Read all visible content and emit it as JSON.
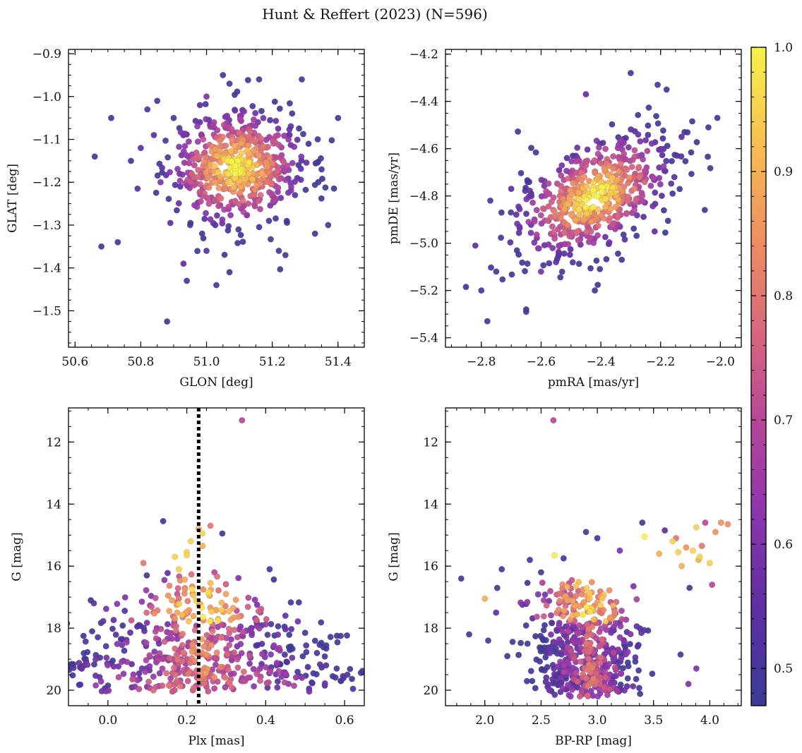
{
  "figure": {
    "title": "Hunt & Reffert (2023) (N=596)"
  },
  "colorbar": {
    "label": "",
    "range": [
      0.47,
      1.0
    ],
    "ticks": [
      0.5,
      0.6,
      0.7,
      0.8,
      0.9,
      1.0
    ],
    "tick_labels": [
      "0.5",
      "0.6",
      "0.7",
      "0.8",
      "0.9",
      "1.0"
    ],
    "colormap": "plasma",
    "colormap_stops": [
      "#3b3b95",
      "#5b2fa2",
      "#8a34ae",
      "#b64599",
      "#d9687c",
      "#ef9060",
      "#f8c050",
      "#f5f249"
    ]
  },
  "chart_data": [
    {
      "id": "sky",
      "type": "scatter",
      "title": "",
      "xlabel": "GLON [deg]",
      "ylabel": "GLAT [deg]",
      "xlim": [
        50.58,
        51.48
      ],
      "ylim": [
        -1.585,
        -0.89
      ],
      "xticks": [
        50.6,
        50.8,
        51.0,
        51.2,
        51.4
      ],
      "xtick_labels": [
        "50.6",
        "50.8",
        "51.0",
        "51.2",
        "51.4"
      ],
      "yticks": [
        -1.5,
        -1.4,
        -1.3,
        -1.2,
        -1.1,
        -1.0,
        -0.9
      ],
      "ytick_labels": [
        "−1.5",
        "−1.4",
        "−1.3",
        "−1.2",
        "−1.1",
        "−1.0",
        "−0.9"
      ],
      "n_points": 596,
      "x": [
        50.66,
        50.68,
        50.71,
        50.73,
        50.77,
        50.79,
        50.8,
        50.82,
        50.84,
        50.85,
        50.86,
        50.89,
        50.9,
        50.92,
        50.93,
        50.94,
        50.95,
        50.96,
        51.0,
        51.03,
        51.05,
        51.07,
        51.07,
        51.16,
        51.19,
        51.22,
        51.24,
        51.29,
        51.33,
        51.35,
        51.37,
        51.4,
        51.28,
        51.25,
        50.88,
        51.0,
        50.98,
        50.98
      ],
      "y": [
        -1.14,
        -1.35,
        -1.05,
        -1.34,
        -1.15,
        -1.215,
        -1.12,
        -1.03,
        -1.09,
        -1.01,
        -1.2,
        -1.295,
        -1.05,
        -1.21,
        -1.39,
        -1.43,
        -1.3,
        -1.2,
        -1.36,
        -1.44,
        -0.95,
        -0.97,
        -1.41,
        -0.96,
        -1.29,
        -1.36,
        -1.37,
        -0.96,
        -1.32,
        -1.17,
        -1.3,
        -1.05,
        -1.16,
        -1.09,
        -1.525,
        -1.0,
        -1.02,
        -1.06
      ],
      "color": [
        0.5,
        0.5,
        0.5,
        0.5,
        0.5,
        0.55,
        0.55,
        0.52,
        0.55,
        0.5,
        0.6,
        0.55,
        0.5,
        0.55,
        0.55,
        0.5,
        0.5,
        0.6,
        0.55,
        0.5,
        0.5,
        0.5,
        0.5,
        0.5,
        0.5,
        0.5,
        0.5,
        0.5,
        0.5,
        0.5,
        0.5,
        0.5,
        0.5,
        0.55,
        0.5,
        0.6,
        0.55,
        0.55
      ],
      "gen": {
        "cx": 51.09,
        "cy": -1.165,
        "sx": 0.1,
        "sy": 0.065,
        "n": 558
      }
    },
    {
      "id": "pm",
      "type": "scatter",
      "title": "",
      "xlabel": "pmRA [mas/yr]",
      "ylabel": "pmDE [mas/yr]",
      "xlim": [
        -2.92,
        -1.93
      ],
      "ylim": [
        -5.44,
        -4.18
      ],
      "xticks": [
        -2.8,
        -2.6,
        -2.4,
        -2.2,
        -2.0
      ],
      "xtick_labels": [
        "−2.8",
        "−2.6",
        "−2.4",
        "−2.2",
        "−2.0"
      ],
      "yticks": [
        -5.4,
        -5.2,
        -5.0,
        -4.8,
        -4.6,
        -4.4,
        -4.2
      ],
      "ytick_labels": [
        "−5.4",
        "−5.2",
        "−5.0",
        "−4.8",
        "−4.6",
        "−4.4",
        "−4.2"
      ],
      "n_points": 596,
      "x": [
        -2.78,
        -2.8,
        -2.75,
        -2.65,
        -2.65,
        -2.82,
        -2.77,
        -2.7,
        -2.6,
        -2.55,
        -2.42,
        -2.33,
        -2.22,
        -2.16,
        -2.04,
        -2.01,
        -2.12,
        -2.18,
        -2.3,
        -2.45,
        -2.13,
        -2.21
      ],
      "y": [
        -5.33,
        -5.2,
        -5.12,
        -5.29,
        -5.28,
        -5.01,
        -4.82,
        -4.77,
        -5.12,
        -5.08,
        -5.2,
        -5.07,
        -4.95,
        -4.79,
        -4.51,
        -4.47,
        -4.53,
        -4.35,
        -4.28,
        -4.37,
        -4.55,
        -4.33
      ],
      "color": [
        0.5,
        0.5,
        0.5,
        0.5,
        0.5,
        0.55,
        0.5,
        0.55,
        0.6,
        0.55,
        0.5,
        0.5,
        0.55,
        0.5,
        0.5,
        0.5,
        0.5,
        0.5,
        0.5,
        0.55,
        0.55,
        0.5
      ],
      "gen": {
        "cx": -2.42,
        "cy": -4.8,
        "sx": 0.13,
        "sy": 0.13,
        "corr": 0.5,
        "n": 574
      }
    },
    {
      "id": "plx",
      "type": "scatter",
      "title": "",
      "xlabel": "Plx [mas]",
      "ylabel": "G [mag]",
      "xlim": [
        -0.1,
        0.65
      ],
      "ylim": [
        20.5,
        10.9
      ],
      "xticks": [
        0.0,
        0.2,
        0.4,
        0.6
      ],
      "xtick_labels": [
        "0.0",
        "0.2",
        "0.4",
        "0.6"
      ],
      "yticks": [
        12,
        14,
        16,
        18,
        20
      ],
      "ytick_labels": [
        "12",
        "14",
        "16",
        "18",
        "20"
      ],
      "vline": {
        "x": 0.23,
        "style": "dotted"
      },
      "n_points": 596,
      "x": [
        0.34,
        -0.04,
        -0.02,
        0.0,
        0.59,
        0.58,
        0.55,
        0.57,
        0.51,
        0.5,
        0.53,
        0.41,
        0.45,
        0.09,
        0.14,
        0.17,
        0.18,
        0.29,
        0.27,
        0.26,
        0.24,
        0.2,
        0.21,
        0.2,
        0.23,
        0.24
      ],
      "y": [
        11.3,
        18.1,
        18.95,
        19.85,
        18.25,
        19.3,
        19.85,
        19.55,
        19.95,
        18.15,
        18.8,
        16.1,
        17.6,
        15.9,
        14.55,
        15.7,
        16.1,
        14.95,
        16.2,
        14.7,
        14.95,
        15.55,
        15.2,
        15.65,
        14.8,
        15.35
      ],
      "color": [
        0.7,
        0.5,
        0.5,
        0.5,
        0.5,
        0.5,
        0.5,
        0.5,
        0.5,
        0.5,
        0.5,
        0.5,
        0.55,
        0.8,
        0.5,
        0.95,
        0.95,
        0.5,
        0.7,
        0.8,
        0.95,
        0.95,
        0.95,
        0.95,
        0.9,
        0.9
      ]
    },
    {
      "id": "cmd",
      "type": "scatter",
      "title": "",
      "xlabel": "BP-RP [mag]",
      "ylabel": "G [mag]",
      "xlim": [
        1.65,
        4.28
      ],
      "ylim": [
        20.5,
        10.9
      ],
      "xticks": [
        2.0,
        2.5,
        3.0,
        3.5,
        4.0
      ],
      "xtick_labels": [
        "2.0",
        "2.5",
        "3.0",
        "3.5",
        "4.0"
      ],
      "yticks": [
        12,
        14,
        16,
        18,
        20
      ],
      "ytick_labels": [
        "12",
        "14",
        "16",
        "18",
        "20"
      ],
      "n_points": 596,
      "x": [
        2.61,
        1.79,
        1.86,
        2.0,
        2.03,
        2.1,
        2.15,
        2.2,
        2.4,
        2.5,
        2.62,
        2.7,
        2.9,
        3.0,
        3.2,
        3.4,
        3.42,
        3.55,
        3.6,
        3.67,
        3.7,
        3.75,
        3.79,
        3.82,
        3.85,
        3.88,
        3.9,
        3.93,
        3.96,
        4.0,
        4.02,
        4.05,
        4.1,
        4.16,
        3.74,
        3.88,
        3.81,
        3.72,
        3.91
      ],
      "y": [
        11.3,
        16.4,
        18.2,
        17.05,
        18.4,
        17.5,
        16.1,
        18.9,
        15.8,
        16.2,
        15.65,
        15.75,
        14.9,
        15.1,
        15.5,
        14.6,
        15.05,
        15.6,
        14.85,
        15.2,
        15.1,
        16.0,
        15.4,
        16.7,
        15.5,
        14.75,
        15.8,
        15.35,
        14.6,
        15.9,
        16.6,
        14.9,
        14.6,
        14.65,
        18.85,
        19.3,
        19.8,
        15.55,
        15.7
      ],
      "color": [
        0.7,
        0.5,
        0.5,
        0.9,
        0.5,
        0.55,
        0.5,
        0.5,
        0.5,
        0.5,
        1.0,
        0.5,
        0.5,
        0.5,
        0.6,
        0.5,
        1.0,
        0.9,
        0.55,
        0.95,
        0.8,
        0.9,
        0.85,
        0.5,
        0.95,
        0.95,
        0.9,
        0.8,
        0.7,
        0.95,
        0.7,
        0.85,
        0.85,
        0.85,
        0.5,
        0.6,
        0.6,
        0.95,
        0.95
      ]
    }
  ]
}
